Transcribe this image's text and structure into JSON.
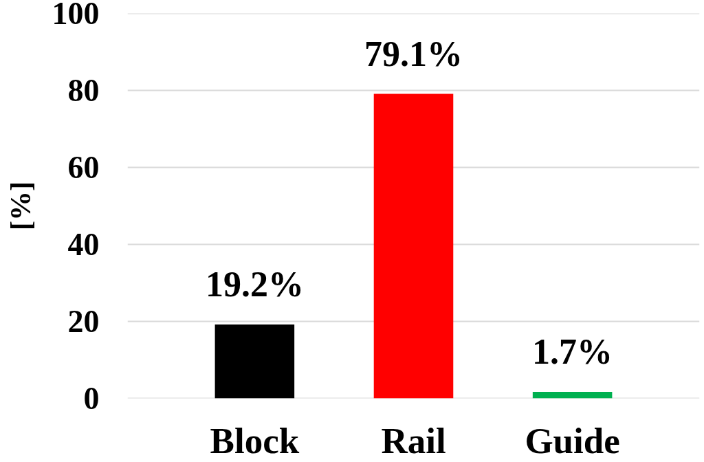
{
  "chart_data": {
    "type": "bar",
    "ylabel": "[%]",
    "categories": [
      "Block",
      "Rail",
      "Guide"
    ],
    "values": [
      19.2,
      79.1,
      1.7
    ],
    "colors": [
      "#000000",
      "#ff0000",
      "#00b050"
    ],
    "value_labels": [
      "19.2%",
      "79.1%",
      "1.7%"
    ],
    "ylim": [
      0,
      100
    ],
    "yticks": [
      0,
      20,
      40,
      60,
      80,
      100
    ],
    "grid": "y"
  }
}
